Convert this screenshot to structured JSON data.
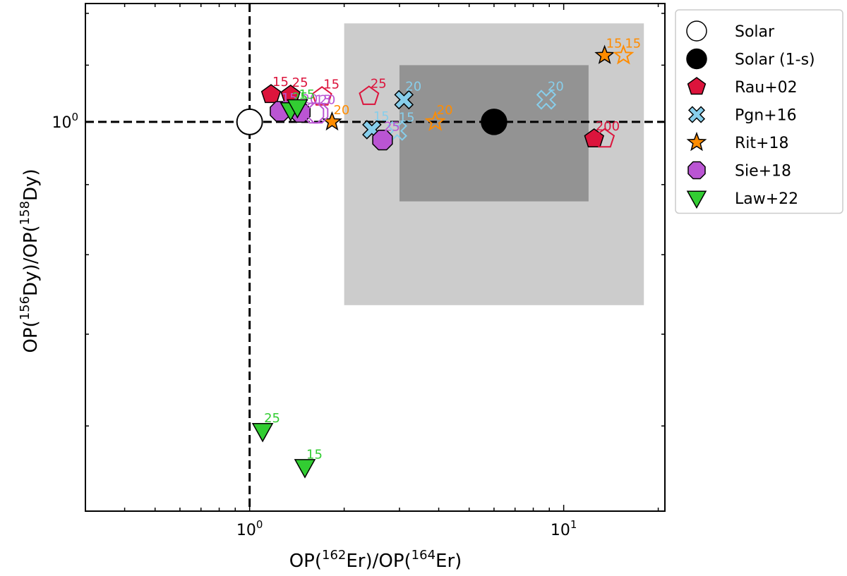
{
  "chart_data": {
    "type": "scatter",
    "xlabel": {
      "prefix": "OP(",
      "sup1": "162",
      "mid": "Er)/OP(",
      "sup2": "164",
      "suffix": "Er)"
    },
    "ylabel": {
      "prefix": "OP(",
      "sup1": "156",
      "mid": "Dy)/OP(",
      "sup2": "158",
      "suffix": "Dy)"
    },
    "x_scale": "log",
    "y_scale": "log",
    "xlim": [
      0.3,
      21
    ],
    "ylim": [
      0.52,
      1.22
    ],
    "x_ticks": [
      {
        "base": "10",
        "exp": "0",
        "value": 1
      },
      {
        "base": "10",
        "exp": "1",
        "value": 10
      }
    ],
    "y_ticks": [
      {
        "base": "10",
        "exp": "0",
        "value": 1
      }
    ],
    "grid": false,
    "legend_position": "outside-right",
    "reference": {
      "x": 1,
      "y": 1
    },
    "bands": [
      {
        "name": "outer",
        "color": "#cccccc",
        "x": [
          2.0,
          18.0
        ],
        "y": [
          0.735,
          1.18
        ]
      },
      {
        "name": "inner",
        "color": "#939393",
        "x": [
          3.0,
          12.0
        ],
        "y": [
          0.875,
          1.1
        ]
      }
    ],
    "series": [
      {
        "name": "Solar",
        "marker": "circle",
        "color": "#000000",
        "fill": "#ffffff",
        "points": [
          {
            "x": 1.0,
            "y": 1.0,
            "filled": true,
            "label": ""
          }
        ]
      },
      {
        "name": "Solar (1-s)",
        "marker": "circle",
        "color": "#000000",
        "fill": "#000000",
        "points": [
          {
            "x": 6.0,
            "y": 1.0,
            "filled": true,
            "label": ""
          }
        ]
      },
      {
        "name": "Rau+02",
        "marker": "pentagon",
        "color": "#dc143c",
        "fill": "#dc143c",
        "points": [
          {
            "x": 1.17,
            "y": 1.047,
            "filled": true,
            "label": "15"
          },
          {
            "x": 1.35,
            "y": 1.046,
            "filled": true,
            "label": "25"
          },
          {
            "x": 1.7,
            "y": 1.043,
            "filled": false,
            "label": "15"
          },
          {
            "x": 2.4,
            "y": 1.044,
            "filled": false,
            "label": "25"
          },
          {
            "x": 12.5,
            "y": 0.972,
            "filled": true,
            "label": "200"
          },
          {
            "x": 13.5,
            "y": 0.972,
            "filled": false,
            "label": ""
          }
        ]
      },
      {
        "name": "Pgn+16",
        "marker": "x",
        "color": "#87ceeb",
        "fill": "#87ceeb",
        "points": [
          {
            "x": 3.1,
            "y": 1.038,
            "filled": true,
            "label": "20"
          },
          {
            "x": 2.45,
            "y": 0.987,
            "filled": true,
            "label": "15"
          },
          {
            "x": 2.95,
            "y": 0.985,
            "filled": false,
            "label": "15"
          },
          {
            "x": 8.8,
            "y": 1.038,
            "filled": false,
            "label": "20"
          }
        ]
      },
      {
        "name": "Rit+18",
        "marker": "star",
        "color": "#ff8c00",
        "fill": "#ff8c00",
        "points": [
          {
            "x": 13.5,
            "y": 1.118,
            "filled": true,
            "label": "15"
          },
          {
            "x": 15.5,
            "y": 1.118,
            "filled": false,
            "label": "15"
          },
          {
            "x": 1.83,
            "y": 1.0,
            "filled": true,
            "label": "20"
          },
          {
            "x": 3.9,
            "y": 1.0,
            "filled": false,
            "label": "20"
          }
        ]
      },
      {
        "name": "Sie+18",
        "marker": "octagon",
        "color": "#ba55d3",
        "fill": "#ba55d3",
        "points": [
          {
            "x": 1.25,
            "y": 1.018,
            "filled": true,
            "label": "15"
          },
          {
            "x": 1.45,
            "y": 1.016,
            "filled": true,
            "label": "20"
          },
          {
            "x": 1.6,
            "y": 1.015,
            "filled": false,
            "label": "15"
          },
          {
            "x": 1.65,
            "y": 1.015,
            "filled": false,
            "label": "20"
          },
          {
            "x": 2.65,
            "y": 0.97,
            "filled": true,
            "label": "25"
          }
        ]
      },
      {
        "name": "Law+22",
        "marker": "triangle-down",
        "color": "#32cd32",
        "fill": "#32cd32",
        "points": [
          {
            "x": 1.1,
            "y": 0.595,
            "filled": true,
            "label": "25"
          },
          {
            "x": 1.5,
            "y": 0.56,
            "filled": true,
            "label": "15"
          },
          {
            "x": 1.35,
            "y": 1.02,
            "filled": true,
            "label": "25"
          },
          {
            "x": 1.42,
            "y": 1.025,
            "filled": true,
            "label": "15"
          }
        ]
      }
    ]
  }
}
